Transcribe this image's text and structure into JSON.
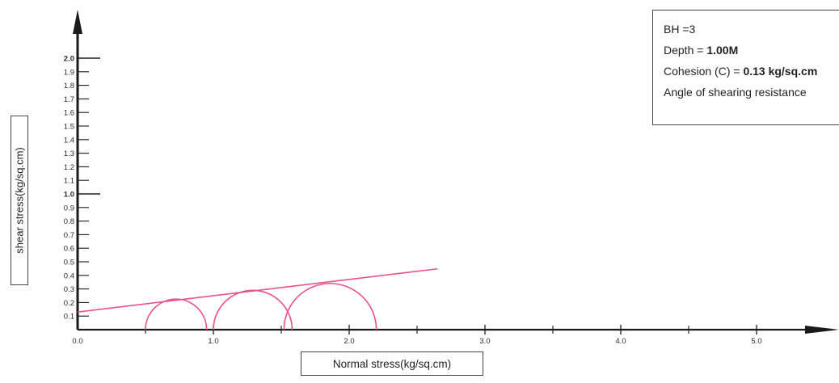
{
  "chart_data": {
    "type": "mohr-circle",
    "xlabel": "Normal stress(kg/sq.cm)",
    "ylabel": "shear stress(kg/sq.cm)",
    "x_ticks": [
      "0.0",
      "1.0",
      "2.0",
      "3.0",
      "4.0",
      "5.0"
    ],
    "y_ticks": [
      "0.1",
      "0.2",
      "0.3",
      "0.4",
      "0.5",
      "0.6",
      "0.7",
      "0.8",
      "0.9",
      "1.0",
      "1.1",
      "1.2",
      "1.3",
      "1.4",
      "1.5",
      "1.6",
      "1.7",
      "1.8",
      "1.9",
      "2.0"
    ],
    "xlim": [
      0,
      5.5
    ],
    "ylim": [
      0,
      2.0
    ],
    "circles": [
      {
        "sigma3": 0.5,
        "sigma1": 0.95
      },
      {
        "sigma3": 1.0,
        "sigma1": 1.58
      },
      {
        "sigma3": 1.52,
        "sigma1": 2.2
      }
    ],
    "envelope": {
      "cohesion": 0.13,
      "slope": 0.12,
      "x_end": 2.65
    },
    "line_color": "#e8508a",
    "axis_color": "#1a1a1a",
    "grid": false
  },
  "info": {
    "bh": "BH =3",
    "depth_label": "Depth = ",
    "depth_value": "1.00M",
    "cohesion_label": "Cohesion (C) = ",
    "cohesion_value": "0.13 kg/sq.cm",
    "angle_label": "Angle of shearing resistance"
  }
}
